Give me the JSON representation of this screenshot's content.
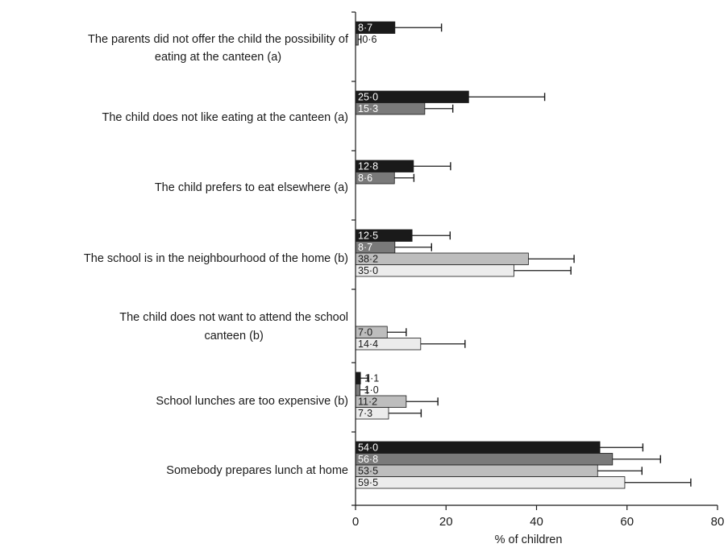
{
  "chart_data": {
    "type": "bar",
    "orientation": "horizontal",
    "xlabel": "% of children",
    "xlim": [
      0,
      80
    ],
    "xticks": [
      0,
      20,
      40,
      60,
      80
    ],
    "grid": false,
    "categories": [
      {
        "label": [
          "The parents did not offer the child the possibility of",
          "eating at the canteen (a)"
        ],
        "bars": [
          {
            "series": 0,
            "value": 8.7,
            "label": "8·7",
            "err": 10.3
          },
          {
            "series": 1,
            "value": 0.6,
            "label": "0·6",
            "err": 0.6
          }
        ]
      },
      {
        "label": [
          "The child does not like eating at the canteen (a)"
        ],
        "bars": [
          {
            "series": 0,
            "value": 25.0,
            "label": "25·0",
            "err": 16.8
          },
          {
            "series": 1,
            "value": 15.3,
            "label": "15·3",
            "err": 6.2
          }
        ]
      },
      {
        "label": [
          "The child prefers to eat elsewhere (a)"
        ],
        "bars": [
          {
            "series": 0,
            "value": 12.8,
            "label": "12·8",
            "err": 8.2
          },
          {
            "series": 1,
            "value": 8.6,
            "label": "8·6",
            "err": 4.3
          }
        ]
      },
      {
        "label": [
          "The school is in the neighbourhood of the home (b)"
        ],
        "bars": [
          {
            "series": 0,
            "value": 12.5,
            "label": "12·5",
            "err": 8.4
          },
          {
            "series": 1,
            "value": 8.7,
            "label": "8·7",
            "err": 8.1
          },
          {
            "series": 2,
            "value": 38.2,
            "label": "38·2",
            "err": 10.1
          },
          {
            "series": 3,
            "value": 35.0,
            "label": "35·0",
            "err": 12.6
          }
        ]
      },
      {
        "label": [
          "The child does not want to attend the school",
          "canteen (b)"
        ],
        "bars": [
          {
            "series": 2,
            "value": 7.0,
            "label": "7·0",
            "err": 4.2
          },
          {
            "series": 3,
            "value": 14.4,
            "label": "14·4",
            "err": 9.8
          }
        ]
      },
      {
        "label": [
          "School lunches are too expensive (b)"
        ],
        "bars": [
          {
            "series": 0,
            "value": 1.1,
            "label": "1·1",
            "err": 1.8
          },
          {
            "series": 1,
            "value": 1.0,
            "label": "1·0",
            "err": 1.6
          },
          {
            "series": 2,
            "value": 11.2,
            "label": "11·2",
            "err": 7.0
          },
          {
            "series": 3,
            "value": 7.3,
            "label": "7·3",
            "err": 7.2
          }
        ]
      },
      {
        "label": [
          "Somebody prepares lunch at home"
        ],
        "bars": [
          {
            "series": 0,
            "value": 54.0,
            "label": "54·0",
            "err": 9.5
          },
          {
            "series": 1,
            "value": 56.8,
            "label": "56·8",
            "err": 10.6
          },
          {
            "series": 2,
            "value": 53.5,
            "label": "53·5",
            "err": 9.8
          },
          {
            "series": 3,
            "value": 59.5,
            "label": "59·5",
            "err": 14.6
          }
        ]
      }
    ],
    "series_colors": [
      "#1a1a1a",
      "#7a7a7a",
      "#bdbdbd",
      "#ececec"
    ],
    "label_colors": [
      "#ffffff",
      "#ffffff",
      "#1a1a1a",
      "#1a1a1a"
    ]
  }
}
